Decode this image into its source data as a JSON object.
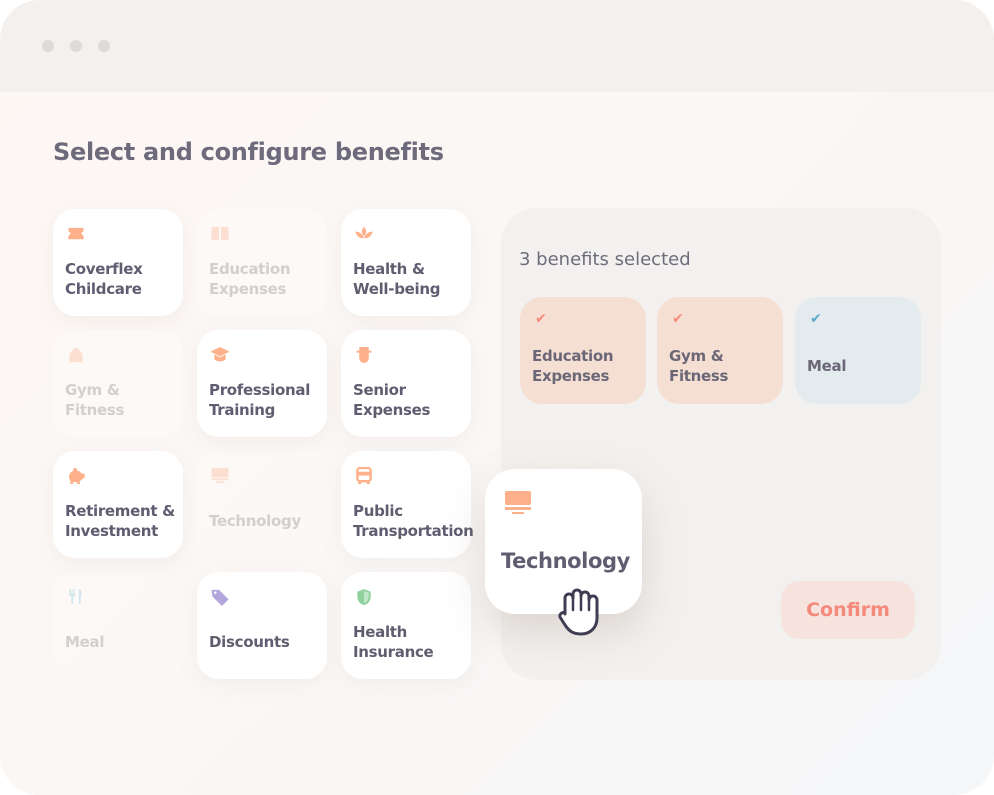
{
  "window": {
    "controls": [
      "close",
      "minimize",
      "maximize"
    ]
  },
  "page": {
    "title": "Select and configure benefits"
  },
  "benefits": [
    {
      "label": "Coverflex Childcare",
      "icon": "ticket-icon",
      "color": "#fdb08a",
      "enabled": true
    },
    {
      "label": "Education Expenses",
      "icon": "book-icon",
      "color": "#fdb08a",
      "enabled": false
    },
    {
      "label": "Health & Well-being",
      "icon": "lotus-icon",
      "color": "#fdb08a",
      "enabled": true
    },
    {
      "label": "Gym & Fitness",
      "icon": "kettlebell-icon",
      "color": "#fdb08a",
      "enabled": false
    },
    {
      "label": "Professional Training",
      "icon": "graduation-cap-icon",
      "color": "#fdb08a",
      "enabled": true
    },
    {
      "label": "Senior Expenses",
      "icon": "senior-icon",
      "color": "#fdb08a",
      "enabled": true
    },
    {
      "label": "Retirement & Investment",
      "icon": "piggy-bank-icon",
      "color": "#fdb08a",
      "enabled": true
    },
    {
      "label": "Technology",
      "icon": "monitor-icon",
      "color": "#fdb08a",
      "enabled": false
    },
    {
      "label": "Public Transportation",
      "icon": "bus-icon",
      "color": "#fdb08a",
      "enabled": true
    },
    {
      "label": "Meal",
      "icon": "fork-knife-icon",
      "color": "#8cc7d8",
      "enabled": false
    },
    {
      "label": "Discounts",
      "icon": "tag-icon",
      "color": "#b2a6dc",
      "enabled": true
    },
    {
      "label": "Health Insurance",
      "icon": "shield-icon",
      "color": "#8fd09c",
      "enabled": true
    }
  ],
  "selection": {
    "count_text": "3 benefits selected",
    "items": [
      {
        "label": "Education Expenses",
        "color": "#f5dfd3"
      },
      {
        "label": "Gym & Fitness",
        "color": "#f5dfd3"
      },
      {
        "label": "Meal",
        "color": "#e3ebee"
      }
    ],
    "confirm_label": "Confirm"
  },
  "dragging": {
    "label": "Technology",
    "icon": "monitor-icon"
  }
}
